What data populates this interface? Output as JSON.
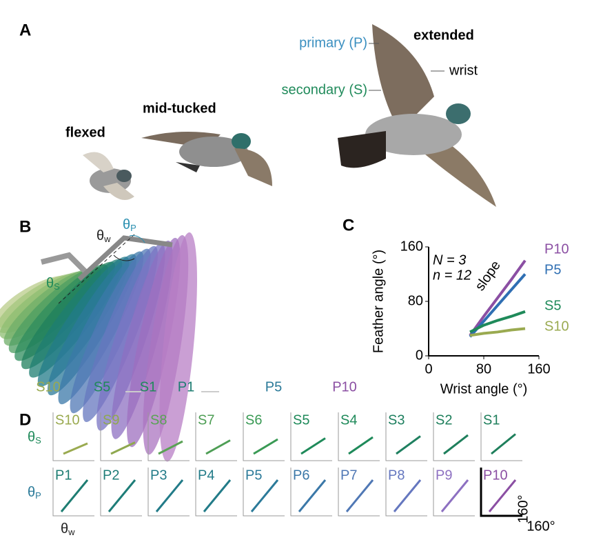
{
  "panel_a": {
    "label": "A",
    "extended": "extended",
    "flexed": "flexed",
    "mid_tucked": "mid-tucked",
    "primary": "primary (P)",
    "secondary": "secondary (S)",
    "wrist": "wrist"
  },
  "panel_b": {
    "label": "B",
    "theta": "θ",
    "sub_w": "w",
    "sub_p": "P",
    "sub_s": "S",
    "labels": [
      "S10",
      "S5",
      "S1",
      "P1",
      "P5",
      "P10"
    ]
  },
  "chart_data": {
    "type": "line",
    "label": "C",
    "xlabel": "Wrist angle (°)",
    "ylabel": "Feather angle (°)",
    "annotations": [
      "N = 3",
      "n = 12",
      "slope"
    ],
    "x": [
      60,
      80,
      100,
      120,
      140
    ],
    "xlim": [
      0,
      160
    ],
    "xticks": [
      0,
      80,
      160
    ],
    "ylim": [
      0,
      160
    ],
    "yticks": [
      0,
      80,
      160
    ],
    "series": [
      {
        "name": "P10",
        "color": "#8b4fa3",
        "values": [
          30,
          58,
          85,
          112,
          140
        ]
      },
      {
        "name": "P5",
        "color": "#2f6fb3",
        "values": [
          28,
          51,
          74,
          97,
          120
        ]
      },
      {
        "name": "S5",
        "color": "#1f8a5a",
        "values": [
          35,
          45,
          52,
          58,
          65
        ]
      },
      {
        "name": "S10",
        "color": "#9aaa50",
        "values": [
          30,
          33,
          35,
          38,
          40
        ]
      }
    ]
  },
  "panel_d": {
    "label": "D",
    "row1": [
      "S10",
      "S9",
      "S8",
      "S7",
      "S6",
      "S5",
      "S4",
      "S3",
      "S2",
      "S1"
    ],
    "row2": [
      "P1",
      "P2",
      "P3",
      "P4",
      "P5",
      "P6",
      "P7",
      "P8",
      "P9",
      "P10"
    ],
    "theta": "θ",
    "sub_s": "S",
    "sub_p": "P",
    "sub_w": "w",
    "scale_y": "160°",
    "scale_x": "160°"
  }
}
